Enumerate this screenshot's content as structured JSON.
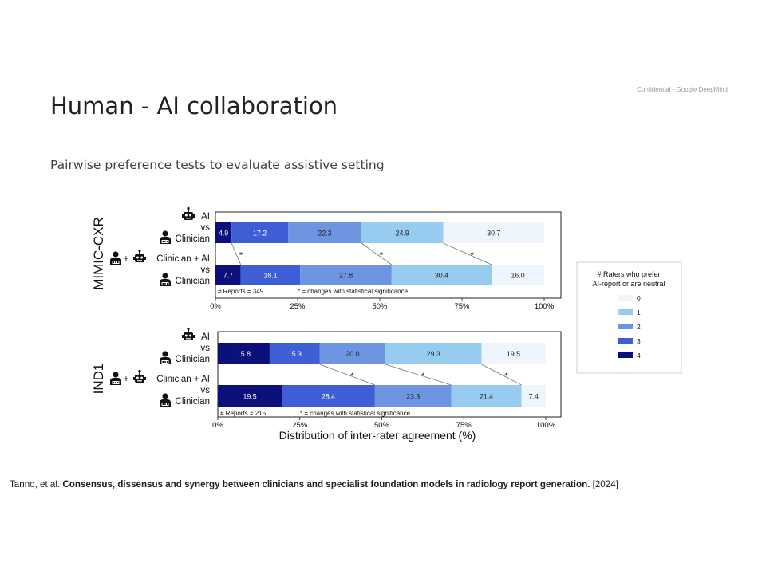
{
  "header": {
    "confidential": "Confidential - Google DeepMind",
    "title": "Human - AI collaboration",
    "subtitle": "Pairwise preference tests to evaluate assistive setting"
  },
  "chart_data": {
    "type": "bar",
    "orientation": "horizontal-stacked-100",
    "xlabel": "Distribution of inter-rater agreement (%)",
    "x_ticks": [
      "0%",
      "25%",
      "50%",
      "75%",
      "100%"
    ],
    "xlim": [
      0,
      100
    ],
    "legend": {
      "title_lines": [
        "# Raters who prefer",
        "AI-report or are neutral"
      ],
      "placement": "right",
      "entries": [
        {
          "label": "0",
          "color": "#eef5fc"
        },
        {
          "label": "1",
          "color": "#97cbf0"
        },
        {
          "label": "2",
          "color": "#6e95e2"
        },
        {
          "label": "3",
          "color": "#3f5ed6"
        },
        {
          "label": "4",
          "color": "#0c107a"
        }
      ]
    },
    "panels": [
      {
        "dataset": "MIMIC-CXR",
        "footnote_reports": "# Reports = 349",
        "footnote_sig": "* = changes with statistical significance",
        "rows": [
          {
            "label_top": "AI",
            "label_mid": "vs",
            "label_bottom": "Clinician",
            "segments": [
              {
                "category": "4",
                "value": 4.9
              },
              {
                "category": "3",
                "value": 17.2
              },
              {
                "category": "2",
                "value": 22.3
              },
              {
                "category": "1",
                "value": 24.9
              },
              {
                "category": "0",
                "value": 30.7
              }
            ]
          },
          {
            "label_top": "Clinician + AI",
            "label_mid": "vs",
            "label_bottom": "Clinician",
            "segments": [
              {
                "category": "4",
                "value": 7.7
              },
              {
                "category": "3",
                "value": 18.1
              },
              {
                "category": "2",
                "value": 27.8
              },
              {
                "category": "1",
                "value": 30.4
              },
              {
                "category": "0",
                "value": 16.0
              }
            ]
          }
        ],
        "significance_marker": "*",
        "significant_boundaries": [
          1,
          3,
          4
        ]
      },
      {
        "dataset": "IND1",
        "footnote_reports": "# Reports = 215",
        "footnote_sig": "* = changes with statistical significance",
        "rows": [
          {
            "label_top": "AI",
            "label_mid": "vs",
            "label_bottom": "Clinician",
            "segments": [
              {
                "category": "4",
                "value": 15.8
              },
              {
                "category": "3",
                "value": 15.3
              },
              {
                "category": "2",
                "value": 20.0
              },
              {
                "category": "1",
                "value": 29.3
              },
              {
                "category": "0",
                "value": 19.5
              }
            ]
          },
          {
            "label_top": "Clinician + AI",
            "label_mid": "vs",
            "label_bottom": "Clinician",
            "segments": [
              {
                "category": "4",
                "value": 19.5
              },
              {
                "category": "3",
                "value": 28.4
              },
              {
                "category": "2",
                "value": 23.3
              },
              {
                "category": "1",
                "value": 21.4
              },
              {
                "category": "0",
                "value": 7.4
              }
            ]
          }
        ],
        "significance_marker": "*",
        "significant_boundaries": [
          2,
          3,
          4
        ]
      }
    ]
  },
  "citation": {
    "authors": "Tanno, et al.",
    "paper_title": "Consensus, dissensus and synergy between clinicians and specialist foundation models in radiology report generation.",
    "year": "[2024]"
  }
}
